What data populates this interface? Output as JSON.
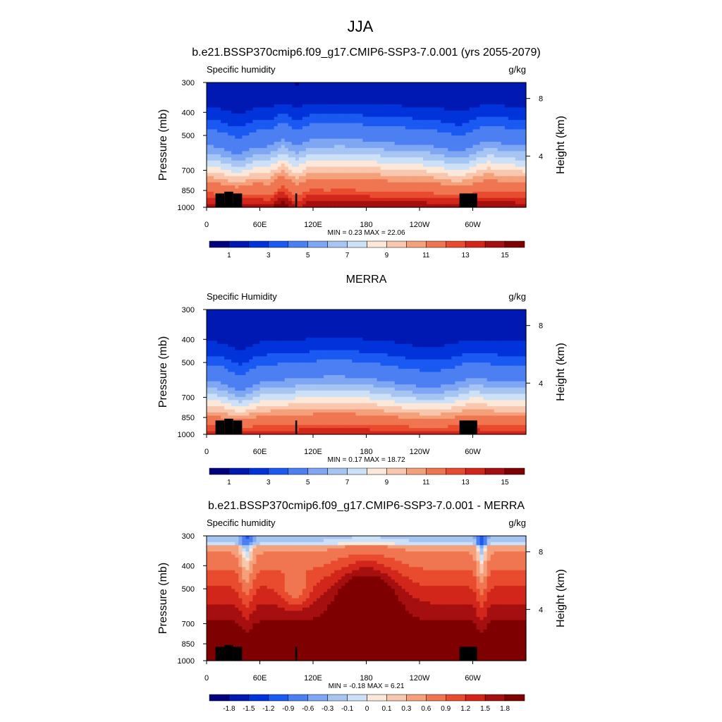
{
  "figure_title": "JJA",
  "chart_data": [
    {
      "type": "heatmap",
      "title": "b.e21.BSSP370cmip6.f09_g17.CMIP6-SSP3-7.0.001 (yrs 2055-2079)",
      "left_label": "Specific humidity",
      "right_label": "g/kg",
      "ylabel": "Pressure (mb)",
      "right_axis_label": "Height (km)",
      "x_ticks": [
        "0",
        "60E",
        "120E",
        "180",
        "120W",
        "60W"
      ],
      "y_ticks": [
        "300",
        "400",
        "500",
        "700",
        "850",
        "1000"
      ],
      "right_ticks": [
        "8",
        "4"
      ],
      "stats": "MIN =   0.23  MAX =  22.06",
      "min": 0.23,
      "max": 22.06,
      "colorbar_levels": [
        0,
        1,
        2,
        3,
        4,
        5,
        6,
        7,
        8,
        9,
        10,
        11,
        12,
        13,
        14,
        15,
        16
      ],
      "colorbar_labels": [
        "1",
        "3",
        "5",
        "7",
        "9",
        "11",
        "13",
        "15"
      ],
      "field": "model"
    },
    {
      "type": "heatmap",
      "title": "MERRA",
      "left_label": "Specific Humidity",
      "right_label": "g/kg",
      "ylabel": "Pressure (mb)",
      "right_axis_label": "Height (km)",
      "x_ticks": [
        "0",
        "60E",
        "120E",
        "180",
        "120W",
        "60W"
      ],
      "y_ticks": [
        "300",
        "400",
        "500",
        "700",
        "850",
        "1000"
      ],
      "right_ticks": [
        "8",
        "4"
      ],
      "stats": "MIN =   0.17  MAX =  18.72",
      "min": 0.17,
      "max": 18.72,
      "colorbar_levels": [
        0,
        1,
        2,
        3,
        4,
        5,
        6,
        7,
        8,
        9,
        10,
        11,
        12,
        13,
        14,
        15,
        16
      ],
      "colorbar_labels": [
        "1",
        "3",
        "5",
        "7",
        "9",
        "11",
        "13",
        "15"
      ],
      "field": "obs"
    },
    {
      "type": "heatmap",
      "title": "b.e21.BSSP370cmip6.f09_g17.CMIP6-SSP3-7.0.001 - MERRA",
      "left_label": "Specific humidity",
      "right_label": "g/kg",
      "ylabel": "Pressure (mb)",
      "right_axis_label": "Height (km)",
      "x_ticks": [
        "0",
        "60E",
        "120E",
        "180",
        "120W",
        "60W"
      ],
      "y_ticks": [
        "300",
        "400",
        "500",
        "700",
        "850",
        "1000"
      ],
      "right_ticks": [
        "8",
        "4"
      ],
      "stats": "MIN =  -0.18  MAX =   6.21",
      "min": -0.18,
      "max": 6.21,
      "colorbar_levels": [
        -1.8,
        -1.5,
        -1.2,
        -0.9,
        -0.6,
        -0.3,
        -0.1,
        0,
        0.1,
        0.3,
        0.6,
        0.9,
        1.2,
        1.5,
        1.8
      ],
      "colorbar_labels": [
        "-1.8",
        "-1.5",
        "-1.2",
        "-0.9",
        "-0.6",
        "-0.3",
        "-0.1",
        "0",
        "0.1",
        "0.3",
        "0.6",
        "0.9",
        "1.2",
        "1.5",
        "1.8"
      ],
      "field": "diff"
    }
  ],
  "palette": [
    "#00007f",
    "#0019b2",
    "#0033d9",
    "#1a59f2",
    "#4c7ff2",
    "#7fa6f2",
    "#a6c5f2",
    "#cce0f7",
    "#fbe8d8",
    "#f8c7ad",
    "#f4a07a",
    "#ef7650",
    "#e84b2e",
    "#d2261a",
    "#a50f0f",
    "#7f0000"
  ]
}
